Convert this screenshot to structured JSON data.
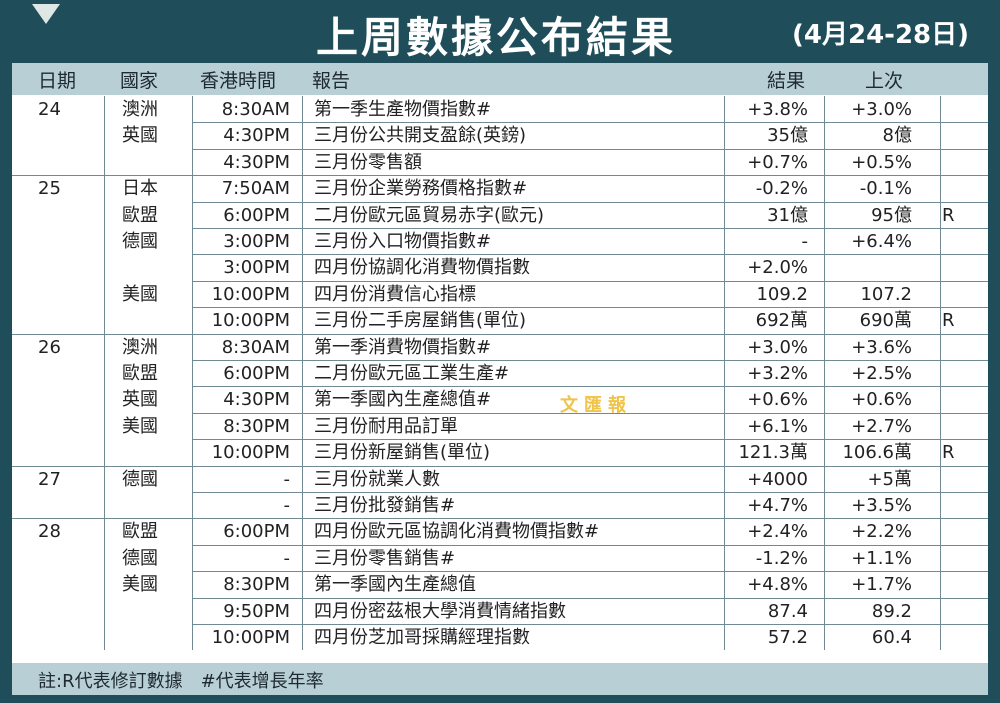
{
  "header": {
    "title": "上周數據公布結果",
    "date_range": "(4月24-28日)"
  },
  "table": {
    "columns": [
      "日期",
      "國家",
      "香港時間",
      "報告",
      "結果",
      "上次"
    ],
    "rows": [
      {
        "date": "24",
        "country": "澳洲",
        "time": "8:30AM",
        "report": "第一季生產物價指數#",
        "result": "+3.8%",
        "previous": "+3.0%",
        "rev": ""
      },
      {
        "date": "",
        "country": "英國",
        "time": "4:30PM",
        "report": "三月份公共開支盈餘(英鎊)",
        "result": "35億",
        "previous": "8億",
        "rev": ""
      },
      {
        "date": "",
        "country": "",
        "time": "4:30PM",
        "report": "三月份零售額",
        "result": "+0.7%",
        "previous": "+0.5%",
        "rev": ""
      },
      {
        "date": "25",
        "country": "日本",
        "time": "7:50AM",
        "report": "三月份企業勞務價格指數#",
        "result": "-0.2%",
        "previous": "-0.1%",
        "rev": ""
      },
      {
        "date": "",
        "country": "歐盟",
        "time": "6:00PM",
        "report": "二月份歐元區貿易赤字(歐元)",
        "result": "31億",
        "previous": "95億",
        "rev": "R"
      },
      {
        "date": "",
        "country": "德國",
        "time": "3:00PM",
        "report": "三月份入口物價指數#",
        "result": "-",
        "previous": "+6.4%",
        "rev": ""
      },
      {
        "date": "",
        "country": "",
        "time": "3:00PM",
        "report": "四月份協調化消費物價指數",
        "result": "+2.0%",
        "previous": "",
        "rev": ""
      },
      {
        "date": "",
        "country": "美國",
        "time": "10:00PM",
        "report": "四月份消費信心指標",
        "result": "109.2",
        "previous": "107.2",
        "rev": ""
      },
      {
        "date": "",
        "country": "",
        "time": "10:00PM",
        "report": "三月份二手房屋銷售(單位)",
        "result": "692萬",
        "previous": "690萬",
        "rev": "R"
      },
      {
        "date": "26",
        "country": "澳洲",
        "time": "8:30AM",
        "report": "第一季消費物價指數#",
        "result": "+3.0%",
        "previous": "+3.6%",
        "rev": ""
      },
      {
        "date": "",
        "country": "歐盟",
        "time": "6:00PM",
        "report": "二月份歐元區工業生產#",
        "result": "+3.2%",
        "previous": "+2.5%",
        "rev": ""
      },
      {
        "date": "",
        "country": "英國",
        "time": "4:30PM",
        "report": "第一季國內生產總值#",
        "result": "+0.6%",
        "previous": "+0.6%",
        "rev": ""
      },
      {
        "date": "",
        "country": "美國",
        "time": "8:30PM",
        "report": "三月份耐用品訂單",
        "result": "+6.1%",
        "previous": "+2.7%",
        "rev": ""
      },
      {
        "date": "",
        "country": "",
        "time": "10:00PM",
        "report": "三月份新屋銷售(單位)",
        "result": "121.3萬",
        "previous": "106.6萬",
        "rev": "R"
      },
      {
        "date": "27",
        "country": "德國",
        "time": "-",
        "report": "三月份就業人數",
        "result": "+4000",
        "previous": "+5萬",
        "rev": ""
      },
      {
        "date": "",
        "country": "",
        "time": "-",
        "report": "三月份批發銷售#",
        "result": "+4.7%",
        "previous": "+3.5%",
        "rev": ""
      },
      {
        "date": "28",
        "country": "歐盟",
        "time": "6:00PM",
        "report": "四月份歐元區協調化消費物價指數#",
        "result": "+2.4%",
        "previous": "+2.2%",
        "rev": ""
      },
      {
        "date": "",
        "country": "德國",
        "time": "-",
        "report": "三月份零售銷售#",
        "result": "-1.2%",
        "previous": "+1.1%",
        "rev": ""
      },
      {
        "date": "",
        "country": "美國",
        "time": "8:30PM",
        "report": "第一季國內生產總值",
        "result": "+4.8%",
        "previous": "+1.7%",
        "rev": ""
      },
      {
        "date": "",
        "country": "",
        "time": "9:50PM",
        "report": "四月份密茲根大學消費情緒指數",
        "result": "87.4",
        "previous": "89.2",
        "rev": ""
      },
      {
        "date": "",
        "country": "",
        "time": "10:00PM",
        "report": "四月份芝加哥採購經理指數",
        "result": "57.2",
        "previous": "60.4",
        "rev": ""
      }
    ]
  },
  "watermark": "文匯報",
  "footer": {
    "note": "註:R代表修訂數據　#代表增長年率"
  },
  "colors": {
    "frame": "#1f4e5a",
    "header_band": "#b9cfd6",
    "grid": "#6f8a92"
  }
}
